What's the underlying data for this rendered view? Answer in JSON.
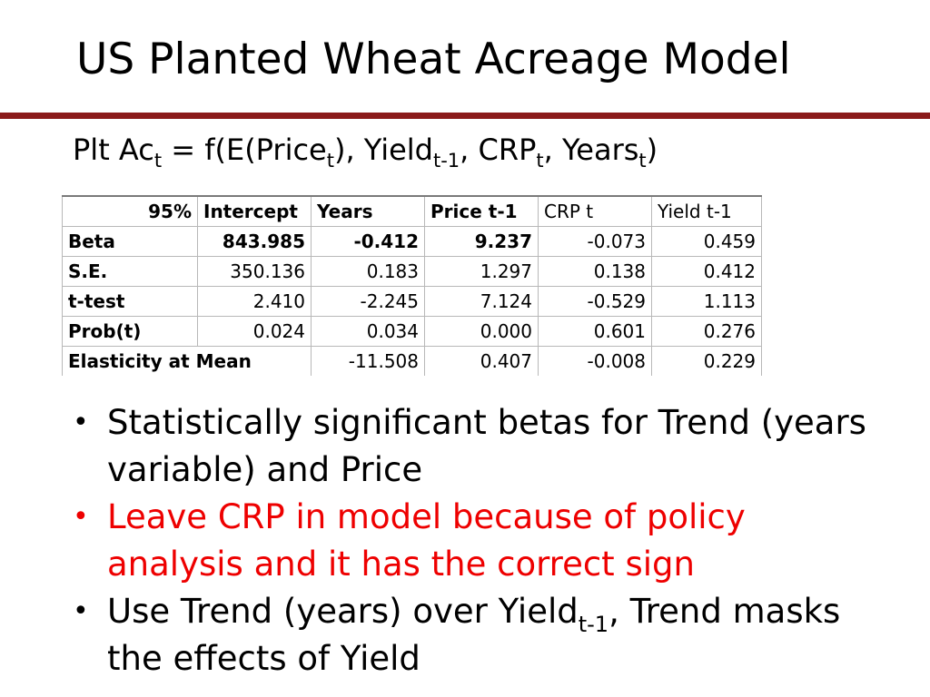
{
  "title": "US Planted Wheat Acreage Model",
  "equation": {
    "lhs": "Plt Ac",
    "lhs_sub": "t",
    "eq": " = f(E(Price",
    "price_sub": "t",
    "part2": "), Yield",
    "yield_sub": "t-1",
    "part3": ", CRP",
    "crp_sub": "t",
    "part4": ", Years",
    "years_sub": "t",
    "part5": ")"
  },
  "table": {
    "headers": [
      "95%",
      "Intercept",
      "Years",
      "Price t-1",
      "CRP t",
      "Yield t-1"
    ],
    "rows": [
      {
        "label": "Beta",
        "values": [
          "843.985",
          "-0.412",
          "9.237",
          "-0.073",
          "0.459"
        ]
      },
      {
        "label": "S.E.",
        "values": [
          "350.136",
          "0.183",
          "1.297",
          "0.138",
          "0.412"
        ]
      },
      {
        "label": "t-test",
        "values": [
          "2.410",
          "-2.245",
          "7.124",
          "-0.529",
          "1.113"
        ]
      },
      {
        "label": "Prob(t)",
        "values": [
          "0.024",
          "0.034",
          "0.000",
          "0.601",
          "0.276"
        ]
      },
      {
        "label": "Elasticity at Mean",
        "values": [
          "-11.508",
          "0.407",
          "-0.008",
          "0.229"
        ]
      }
    ]
  },
  "bullets": [
    {
      "text": "Statistically significant betas for Trend (years variable) and Price"
    },
    {
      "text": "Leave CRP in model because of policy analysis and it has the correct sign",
      "color": "#ee0000"
    },
    {
      "text_pre": "Use Trend (years) over Yield",
      "sub": "t-1",
      "text_post": ", Trend masks the effects of Yield"
    }
  ],
  "colors": {
    "rule": "#8b1a1a",
    "highlight": "#ee0000"
  }
}
